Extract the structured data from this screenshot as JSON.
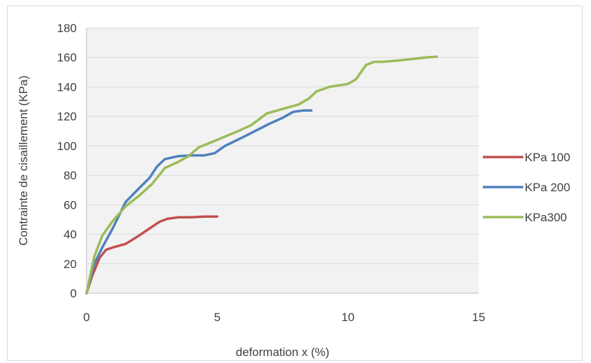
{
  "chart_data": {
    "type": "line",
    "title": "",
    "xlabel": "deformation x (%)",
    "ylabel": "Contrainte de cisaillement (KPa)",
    "xlim": [
      0,
      15
    ],
    "ylim": [
      0,
      180
    ],
    "xticks": [
      0,
      5,
      10,
      15
    ],
    "yticks": [
      0,
      20,
      40,
      60,
      80,
      100,
      120,
      140,
      160,
      180
    ],
    "grid": "horizontal",
    "legend": "right",
    "plot_background": "#f2f2f2",
    "series": [
      {
        "name": "KPa 100",
        "color": "#c0504d",
        "points": [
          [
            0,
            0
          ],
          [
            0.2,
            11
          ],
          [
            0.5,
            24
          ],
          [
            0.75,
            29.5
          ],
          [
            1.0,
            31
          ],
          [
            1.5,
            33.5
          ],
          [
            2.0,
            39
          ],
          [
            2.5,
            45
          ],
          [
            2.8,
            48.5
          ],
          [
            3.1,
            50.5
          ],
          [
            3.5,
            51.5
          ],
          [
            4.0,
            51.5
          ],
          [
            4.5,
            52
          ],
          [
            5.0,
            52
          ]
        ]
      },
      {
        "name": "KPa 200",
        "color": "#4f81bd",
        "points": [
          [
            0,
            0
          ],
          [
            0.3,
            20
          ],
          [
            0.6,
            31
          ],
          [
            1.0,
            44
          ],
          [
            1.5,
            62
          ],
          [
            2.0,
            71
          ],
          [
            2.4,
            78
          ],
          [
            2.7,
            86
          ],
          [
            3.0,
            91
          ],
          [
            3.5,
            93
          ],
          [
            4.0,
            93.5
          ],
          [
            4.5,
            93.5
          ],
          [
            4.9,
            95
          ],
          [
            5.3,
            100
          ],
          [
            6.0,
            106
          ],
          [
            7.0,
            115
          ],
          [
            7.5,
            119
          ],
          [
            7.9,
            123
          ],
          [
            8.3,
            124
          ],
          [
            8.6,
            124
          ]
        ]
      },
      {
        "name": "KPa300",
        "color": "#9bbb59",
        "points": [
          [
            0,
            0
          ],
          [
            0.3,
            25
          ],
          [
            0.6,
            39
          ],
          [
            1.0,
            49
          ],
          [
            1.5,
            59
          ],
          [
            2.0,
            66
          ],
          [
            2.5,
            74
          ],
          [
            3.0,
            85
          ],
          [
            3.5,
            89
          ],
          [
            3.9,
            93
          ],
          [
            4.3,
            99
          ],
          [
            5.0,
            104
          ],
          [
            5.8,
            110
          ],
          [
            6.3,
            114
          ],
          [
            6.9,
            122
          ],
          [
            7.5,
            125
          ],
          [
            8.1,
            128
          ],
          [
            8.5,
            132
          ],
          [
            8.8,
            137
          ],
          [
            9.3,
            140
          ],
          [
            10.0,
            142
          ],
          [
            10.3,
            145
          ],
          [
            10.7,
            155
          ],
          [
            11.0,
            157
          ],
          [
            11.3,
            157
          ],
          [
            12.0,
            158
          ],
          [
            13.0,
            160
          ],
          [
            13.4,
            160.5
          ]
        ]
      }
    ]
  }
}
